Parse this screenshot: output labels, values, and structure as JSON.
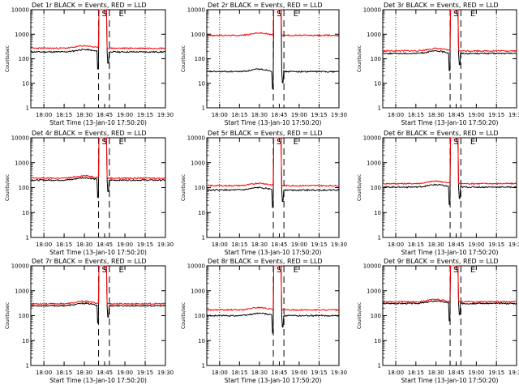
{
  "chart_data": {
    "type": "line",
    "y_scale": "log",
    "ylim": [
      1,
      10000
    ],
    "y_ticks": [
      "1",
      "10",
      "100",
      "1000",
      "10000"
    ],
    "x_ticks": [
      "18:00",
      "18:15",
      "18:30",
      "18:45",
      "19:00",
      "19:15",
      "19:30"
    ],
    "xlim": [
      "17:50:20",
      "19:30"
    ],
    "xlabel": "Start Time (13-Jan-10 17:50:20)",
    "ylabel": "Counts/sec",
    "grid": "dotted vertical lines at 18:00 and 19:15",
    "colors": {
      "events": "#000000",
      "lld": "#ff0000"
    },
    "panels": [
      {
        "title": "Det 1r  BLACK = Events, RED = LLD",
        "events_base": 190,
        "lld_base": 270,
        "peak": 10000,
        "s_label": "S",
        "e_label": "E"
      },
      {
        "title": "Det 2r  BLACK = Events, RED = LLD",
        "events_base": 30,
        "lld_base": 900,
        "peak": 10000,
        "s_label": "S",
        "e_label": "E"
      },
      {
        "title": "Det 3r  BLACK = Events, RED = LLD",
        "events_base": 165,
        "lld_base": 210,
        "peak": 10000,
        "s_label": "S",
        "e_label": "E"
      },
      {
        "title": "Det 4r  BLACK = Events, RED = LLD",
        "events_base": 200,
        "lld_base": 240,
        "peak": 10000,
        "s_label": "S",
        "e_label": "E"
      },
      {
        "title": "Det 5r  BLACK = Events, RED = LLD",
        "events_base": 80,
        "lld_base": 120,
        "peak": 10000,
        "s_label": "S",
        "e_label": "E"
      },
      {
        "title": "Det 6r  BLACK = Events, RED = LLD",
        "events_base": 105,
        "lld_base": 145,
        "peak": 10000,
        "s_label": "S",
        "e_label": "E"
      },
      {
        "title": "Det 7r  BLACK = Events, RED = LLD",
        "events_base": 250,
        "lld_base": 300,
        "peak": 10000,
        "s_label": "S",
        "e_label": "E"
      },
      {
        "title": "Det 8r  BLACK = Events, RED = LLD",
        "events_base": 100,
        "lld_base": 170,
        "peak": 10000,
        "s_label": "S",
        "e_label": "E"
      },
      {
        "title": "Det 9r  BLACK = Events, RED = LLD",
        "events_base": 310,
        "lld_base": 360,
        "peak": 10000,
        "s_label": "S",
        "e_label": "E"
      }
    ]
  }
}
